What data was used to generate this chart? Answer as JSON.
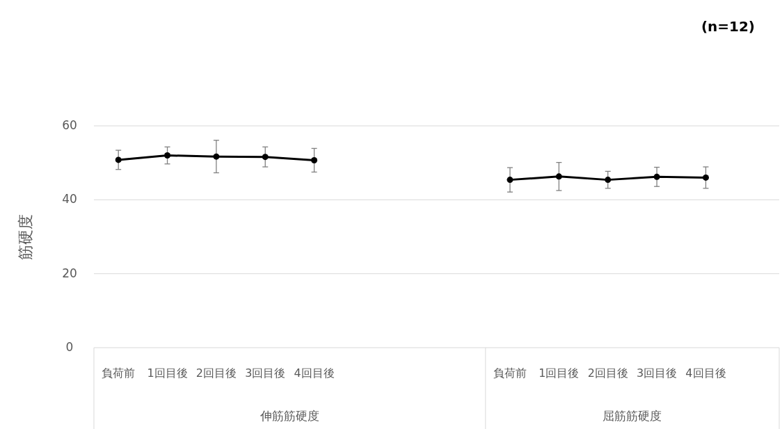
{
  "chart_data": {
    "type": "line",
    "title": "(n=12)",
    "ylabel": "筋硬度",
    "categories": [
      "負荷前",
      "1回目後",
      "2回目後",
      "3回目後",
      "4回目後",
      null,
      null,
      null,
      "負荷前",
      "1回目後",
      "2回目後",
      "3回目後",
      "4回目後",
      null
    ],
    "series": [
      {
        "color": "#000000",
        "values": [
          50.8,
          52.0,
          51.7,
          51.6,
          50.7,
          null,
          null,
          null,
          null,
          null,
          null,
          null,
          null,
          null
        ],
        "errors": [
          2.6,
          2.3,
          4.4,
          2.7,
          3.2,
          null,
          null,
          null,
          null,
          null,
          null,
          null,
          null,
          null
        ]
      },
      {
        "color": "#000000",
        "values": [
          null,
          null,
          null,
          null,
          null,
          null,
          null,
          null,
          45.4,
          46.3,
          45.4,
          46.2,
          46.0,
          null
        ],
        "errors": [
          null,
          null,
          null,
          null,
          null,
          null,
          null,
          null,
          3.3,
          3.8,
          2.3,
          2.6,
          2.9,
          null
        ]
      }
    ],
    "annotations": [
      "伸筋筋硬度",
      "屈筋筋硬度"
    ],
    "ylim": [
      0,
      60
    ],
    "yticks": [
      0,
      20,
      40,
      60
    ],
    "grid": "y",
    "marker": "circle",
    "line_style": "solid"
  }
}
